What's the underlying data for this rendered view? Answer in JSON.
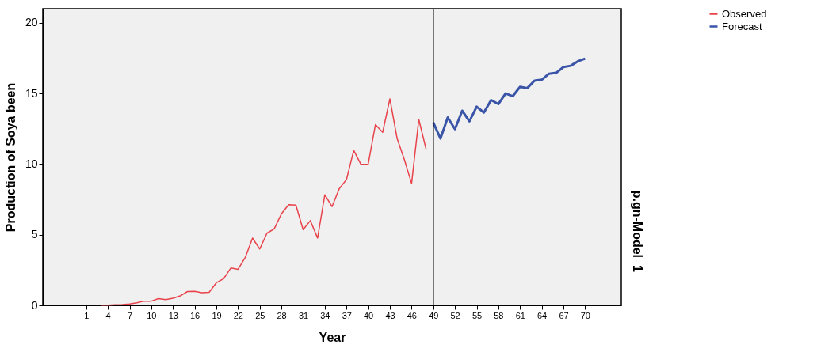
{
  "chart_data": {
    "type": "line",
    "xlabel": "Year",
    "ylabel": "Production of Soya been",
    "xlim": [
      -5,
      75
    ],
    "xticks": [
      1,
      4,
      7,
      10,
      13,
      16,
      19,
      22,
      25,
      28,
      31,
      34,
      37,
      40,
      43,
      46,
      49,
      52,
      55,
      58,
      61,
      64,
      67,
      70
    ],
    "ylim": [
      0,
      21
    ],
    "yticks": [
      0,
      5,
      10,
      15,
      20
    ],
    "series": [
      {
        "name": "Observed",
        "color": "#e8424a",
        "x": [
          3,
          4,
          5,
          6,
          7,
          8,
          9,
          10,
          11,
          12,
          13,
          14,
          15,
          16,
          17,
          18,
          19,
          20,
          21,
          22,
          23,
          24,
          25,
          26,
          27,
          28,
          29,
          30,
          31,
          32,
          33,
          34,
          35,
          36,
          37,
          38,
          39,
          40,
          41,
          42,
          43,
          44,
          45,
          46,
          47,
          48
        ],
        "values": [
          0.01,
          0.02,
          0.04,
          0.06,
          0.1,
          0.18,
          0.3,
          0.3,
          0.48,
          0.4,
          0.5,
          0.67,
          0.98,
          1.0,
          0.9,
          0.92,
          1.6,
          1.88,
          2.64,
          2.55,
          3.39,
          4.76,
          3.99,
          5.11,
          5.41,
          6.48,
          7.13,
          7.1,
          5.36,
          6.0,
          4.76,
          7.83,
          6.99,
          8.26,
          8.91,
          10.97,
          9.98,
          10.0,
          12.79,
          12.25,
          14.62,
          11.81,
          10.32,
          8.63,
          13.16,
          11.07
        ]
      },
      {
        "name": "Forecast",
        "color": "#3a55a8",
        "x": [
          49,
          50,
          51,
          52,
          53,
          54,
          55,
          56,
          57,
          58,
          59,
          60,
          61,
          62,
          63,
          64,
          65,
          66,
          67,
          68,
          69,
          70
        ],
        "values": [
          12.94,
          11.81,
          13.3,
          12.47,
          13.78,
          13.03,
          14.06,
          13.65,
          14.53,
          14.25,
          15.0,
          14.81,
          15.47,
          15.38,
          15.9,
          15.97,
          16.4,
          16.46,
          16.87,
          16.96,
          17.28,
          17.47
        ]
      }
    ],
    "ref_lines": [
      {
        "axis": "x",
        "value": 49,
        "color": "#000000"
      }
    ],
    "annotations": [
      "p.gn-Model_1"
    ],
    "grid": false,
    "legend": "top right",
    "marker": "none",
    "line_style": "solid"
  }
}
